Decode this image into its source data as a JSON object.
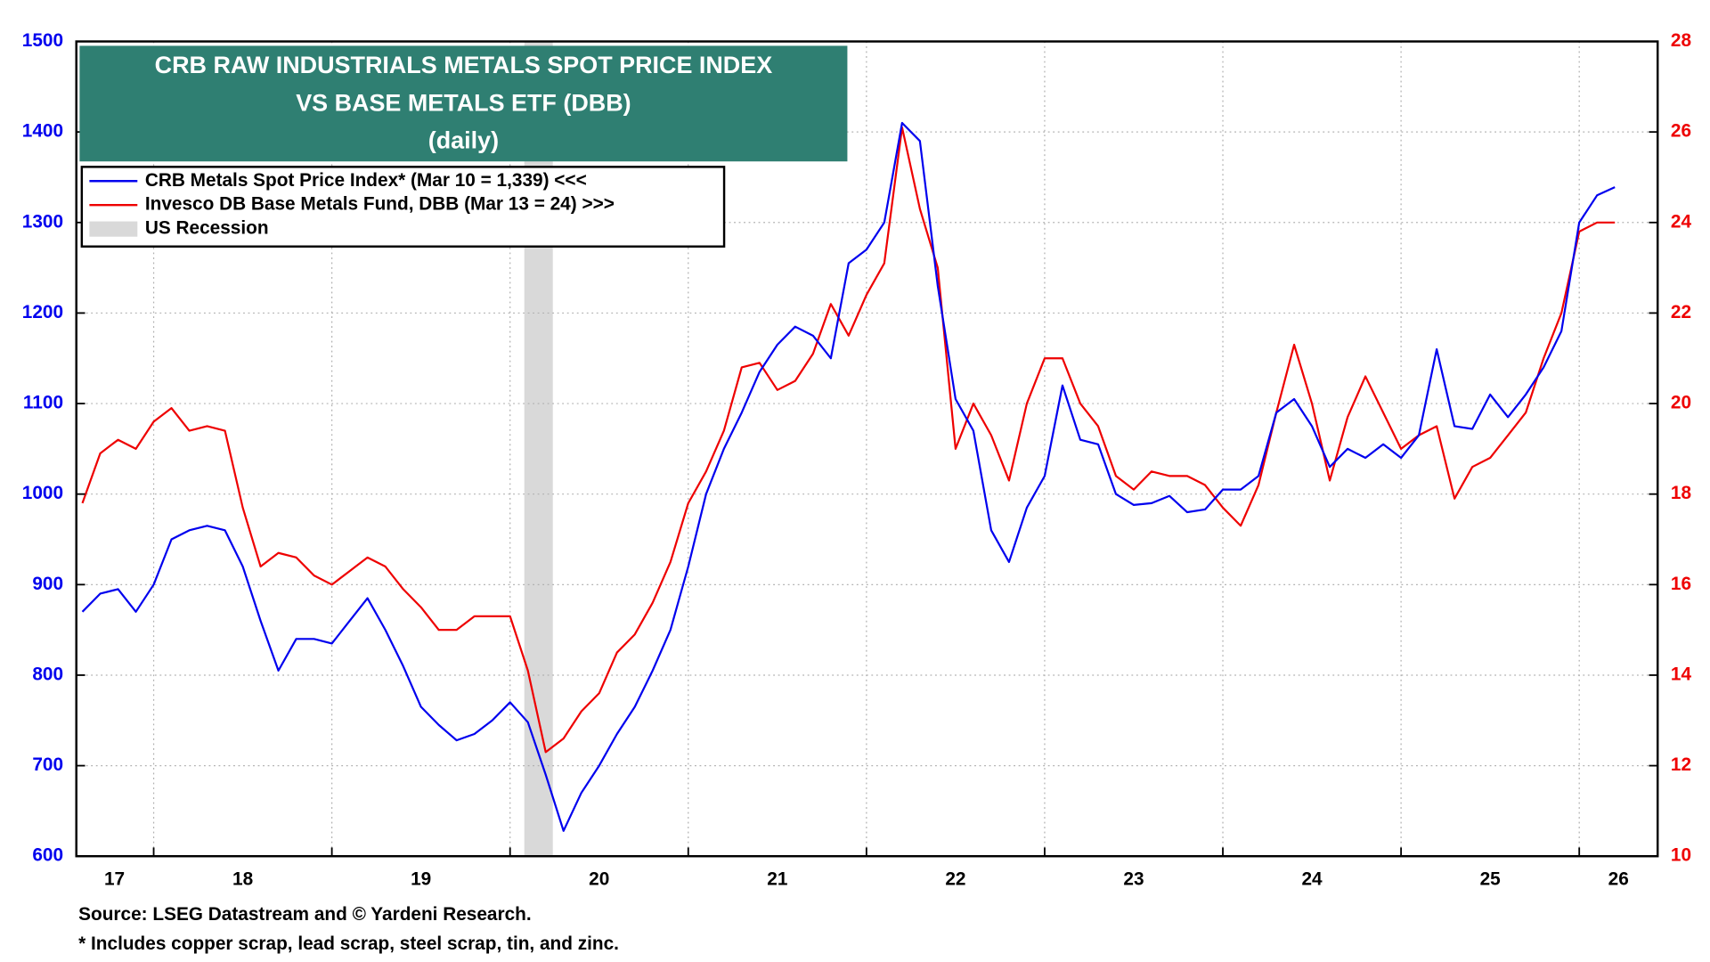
{
  "chart_data": {
    "type": "line",
    "title": [
      "CRB RAW INDUSTRIALS METALS SPOT PRICE INDEX",
      "VS BASE METALS ETF (DBB)"
    ],
    "subtitle": "(daily)",
    "source": "Source: LSEG Datastream and © Yardeni Research.",
    "note": "* Includes copper scrap, lead scrap, steel scrap, tin, and zinc.",
    "x": [
      2017.6,
      2017.7,
      2017.8,
      2017.9,
      2018.0,
      2018.1,
      2018.2,
      2018.3,
      2018.4,
      2018.5,
      2018.6,
      2018.7,
      2018.8,
      2018.9,
      2019.0,
      2019.1,
      2019.2,
      2019.3,
      2019.4,
      2019.5,
      2019.6,
      2019.7,
      2019.8,
      2019.9,
      2020.0,
      2020.1,
      2020.2,
      2020.3,
      2020.4,
      2020.5,
      2020.6,
      2020.7,
      2020.8,
      2020.9,
      2021.0,
      2021.1,
      2021.2,
      2021.3,
      2021.4,
      2021.5,
      2021.6,
      2021.7,
      2021.8,
      2021.9,
      2022.0,
      2022.1,
      2022.2,
      2022.3,
      2022.4,
      2022.5,
      2022.6,
      2022.7,
      2022.8,
      2022.9,
      2023.0,
      2023.1,
      2023.2,
      2023.3,
      2023.4,
      2023.5,
      2023.6,
      2023.7,
      2023.8,
      2023.9,
      2024.0,
      2024.1,
      2024.2,
      2024.3,
      2024.4,
      2024.5,
      2024.6,
      2024.7,
      2024.8,
      2024.9,
      2025.0,
      2025.1,
      2025.2,
      2025.3,
      2025.4,
      2025.5,
      2025.6,
      2025.7,
      2025.8,
      2025.9,
      2026.0,
      2026.1,
      2026.2
    ],
    "series": [
      {
        "name": "CRB Metals Spot Price Index* (Mar 10 = 1,339) <<<",
        "color": "#0000ee",
        "axis": "y",
        "values": [
          870,
          890,
          895,
          870,
          900,
          950,
          960,
          965,
          960,
          920,
          860,
          805,
          840,
          840,
          835,
          860,
          885,
          850,
          810,
          765,
          745,
          728,
          735,
          750,
          770,
          748,
          690,
          628,
          670,
          700,
          735,
          765,
          805,
          850,
          920,
          1000,
          1050,
          1090,
          1135,
          1165,
          1185,
          1175,
          1150,
          1255,
          1270,
          1300,
          1410,
          1390,
          1230,
          1105,
          1070,
          960,
          925,
          985,
          1020,
          1120,
          1060,
          1055,
          1000,
          988,
          990,
          998,
          980,
          983,
          1005,
          1005,
          1020,
          1090,
          1105,
          1075,
          1030,
          1050,
          1040,
          1055,
          1040,
          1065,
          1160,
          1075,
          1072,
          1110,
          1085,
          1110,
          1140,
          1180,
          1300,
          1330,
          1339
        ]
      },
      {
        "name": "Invesco DB Base Metals Fund, DBB (Mar 13 = 24) >>>",
        "color": "#ee0000",
        "axis": "y2",
        "values": [
          17.8,
          18.9,
          19.2,
          19.0,
          19.6,
          19.9,
          19.4,
          19.5,
          19.4,
          17.7,
          16.4,
          16.7,
          16.6,
          16.2,
          16.0,
          16.3,
          16.6,
          16.4,
          15.9,
          15.5,
          15.0,
          15.0,
          15.3,
          15.3,
          15.3,
          14.1,
          12.3,
          12.6,
          13.2,
          13.6,
          14.5,
          14.9,
          15.6,
          16.5,
          17.8,
          18.5,
          19.4,
          20.8,
          20.9,
          20.3,
          20.5,
          21.1,
          22.2,
          21.5,
          22.4,
          23.1,
          26.1,
          24.3,
          23.0,
          19.0,
          20.0,
          19.3,
          18.3,
          20.0,
          21.0,
          21.0,
          20.0,
          19.5,
          18.4,
          18.1,
          18.5,
          18.4,
          18.4,
          18.2,
          17.7,
          17.3,
          18.2,
          19.8,
          21.3,
          20.0,
          18.3,
          19.7,
          20.6,
          19.8,
          19.0,
          19.3,
          19.5,
          17.9,
          18.6,
          18.8,
          19.3,
          19.8,
          21.0,
          22.0,
          23.8,
          24.0,
          24.0
        ]
      }
    ],
    "recession": {
      "name": "US Recession",
      "start": 2020.08,
      "end": 2020.24,
      "color": "#d9d9d9"
    },
    "xlim": [
      2017.566,
      2026.44
    ],
    "xticks": [
      {
        "value": 2017.78,
        "label": "17"
      },
      {
        "value": 2018.5,
        "label": "18"
      },
      {
        "value": 2019.5,
        "label": "19"
      },
      {
        "value": 2020.5,
        "label": "20"
      },
      {
        "value": 2021.5,
        "label": "21"
      },
      {
        "value": 2022.5,
        "label": "22"
      },
      {
        "value": 2023.5,
        "label": "23"
      },
      {
        "value": 2024.5,
        "label": "24"
      },
      {
        "value": 2025.5,
        "label": "25"
      },
      {
        "value": 2026.22,
        "label": "26"
      }
    ],
    "xgrid": [
      2018,
      2019,
      2020,
      2021,
      2022,
      2023,
      2024,
      2025,
      2026
    ],
    "ylim": [
      600,
      1500
    ],
    "yticks": [
      600,
      700,
      800,
      900,
      1000,
      1100,
      1200,
      1300,
      1400,
      1500
    ],
    "y2lim": [
      10,
      28
    ],
    "y2ticks": [
      10,
      12,
      14,
      16,
      18,
      20,
      22,
      24,
      26,
      28
    ],
    "grid": true,
    "legend": "upper left"
  }
}
